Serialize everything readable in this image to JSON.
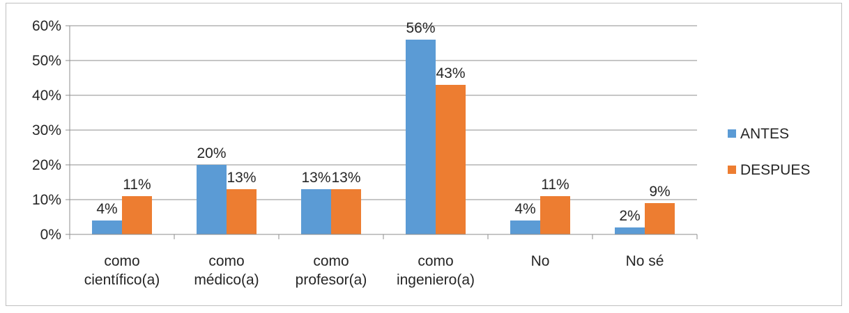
{
  "chart_data": {
    "type": "bar",
    "categories": [
      [
        "como",
        "científico(a)"
      ],
      [
        "como",
        "médico(a)"
      ],
      [
        "como",
        "profesor(a)"
      ],
      [
        "como",
        "ingeniero(a)"
      ],
      [
        "No"
      ],
      [
        "No sé"
      ]
    ],
    "series": [
      {
        "name": "ANTES",
        "color": "#5b9bd5",
        "values": [
          4,
          20,
          13,
          56,
          4,
          2
        ],
        "labels": [
          "4%",
          "20%",
          "13%",
          "56%",
          "4%",
          "2%"
        ]
      },
      {
        "name": "DESPUES",
        "color": "#ed7d31",
        "values": [
          11,
          13,
          13,
          43,
          11,
          9
        ],
        "labels": [
          "11%",
          "13%",
          "13%",
          "43%",
          "11%",
          "9%"
        ]
      }
    ],
    "ylim": [
      0,
      60
    ],
    "yticks": [
      0,
      10,
      20,
      30,
      40,
      50,
      60
    ],
    "ytick_labels": [
      "0%",
      "10%",
      "20%",
      "30%",
      "40%",
      "50%",
      "60%"
    ],
    "grid": true,
    "legend_position": "right",
    "gridline_color": "#8c8c8c",
    "axis_color": "#8c8c8c"
  }
}
